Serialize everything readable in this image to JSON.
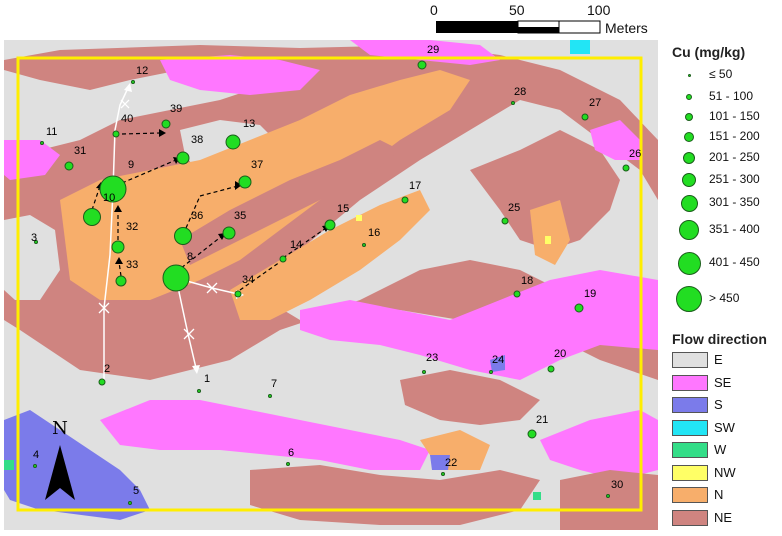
{
  "scalebar": {
    "ticks": [
      "0",
      "50",
      "100"
    ],
    "unit": "Meters"
  },
  "north_label": "N",
  "legend_cu": {
    "title": "Cu (mg/kg)",
    "classes": [
      "≤ 50",
      "51 - 100",
      "101 - 150",
      "151 - 200",
      "201 - 250",
      "251 - 300",
      "301 - 350",
      "351 - 400",
      "401 - 450",
      "> 450"
    ]
  },
  "legend_flow": {
    "title": "Flow direction",
    "items": [
      {
        "label": "E",
        "color": "#e0e0e0"
      },
      {
        "label": "SE",
        "color": "#ff77ff"
      },
      {
        "label": "S",
        "color": "#7b7bea"
      },
      {
        "label": "SW",
        "color": "#22e5f5"
      },
      {
        "label": "W",
        "color": "#33dd88"
      },
      {
        "label": "NW",
        "color": "#ffff66"
      },
      {
        "label": "N",
        "color": "#f7ae6b"
      },
      {
        "label": "NE",
        "color": "#cf8480"
      }
    ]
  },
  "colors": {
    "boundary": "#ffee00",
    "point": "#22dd22",
    "point_outline": "#1a5e1a"
  },
  "samples": [
    {
      "id": "1",
      "cls": 0
    },
    {
      "id": "2",
      "cls": 1
    },
    {
      "id": "3",
      "cls": 0
    },
    {
      "id": "4",
      "cls": 0
    },
    {
      "id": "5",
      "cls": 0
    },
    {
      "id": "6",
      "cls": 0
    },
    {
      "id": "7",
      "cls": 0
    },
    {
      "id": "8",
      "cls": 9
    },
    {
      "id": "9",
      "cls": 9
    },
    {
      "id": "10",
      "cls": 6
    },
    {
      "id": "11",
      "cls": 0
    },
    {
      "id": "12",
      "cls": 0
    },
    {
      "id": "13",
      "cls": 5
    },
    {
      "id": "14",
      "cls": 1
    },
    {
      "id": "15",
      "cls": 3
    },
    {
      "id": "16",
      "cls": 0
    },
    {
      "id": "17",
      "cls": 1
    },
    {
      "id": "18",
      "cls": 1
    },
    {
      "id": "19",
      "cls": 2
    },
    {
      "id": "20",
      "cls": 1
    },
    {
      "id": "21",
      "cls": 2
    },
    {
      "id": "22",
      "cls": 0
    },
    {
      "id": "23",
      "cls": 0
    },
    {
      "id": "24",
      "cls": 0
    },
    {
      "id": "25",
      "cls": 1
    },
    {
      "id": "26",
      "cls": 1
    },
    {
      "id": "27",
      "cls": 1
    },
    {
      "id": "28",
      "cls": 0
    },
    {
      "id": "29",
      "cls": 2
    },
    {
      "id": "30",
      "cls": 0
    },
    {
      "id": "31",
      "cls": 2
    },
    {
      "id": "32",
      "cls": 4
    },
    {
      "id": "33",
      "cls": 3
    },
    {
      "id": "34",
      "cls": 1
    },
    {
      "id": "35",
      "cls": 4
    },
    {
      "id": "36",
      "cls": 6
    },
    {
      "id": "37",
      "cls": 4
    },
    {
      "id": "38",
      "cls": 4
    },
    {
      "id": "39",
      "cls": 2
    },
    {
      "id": "40",
      "cls": 1
    }
  ]
}
